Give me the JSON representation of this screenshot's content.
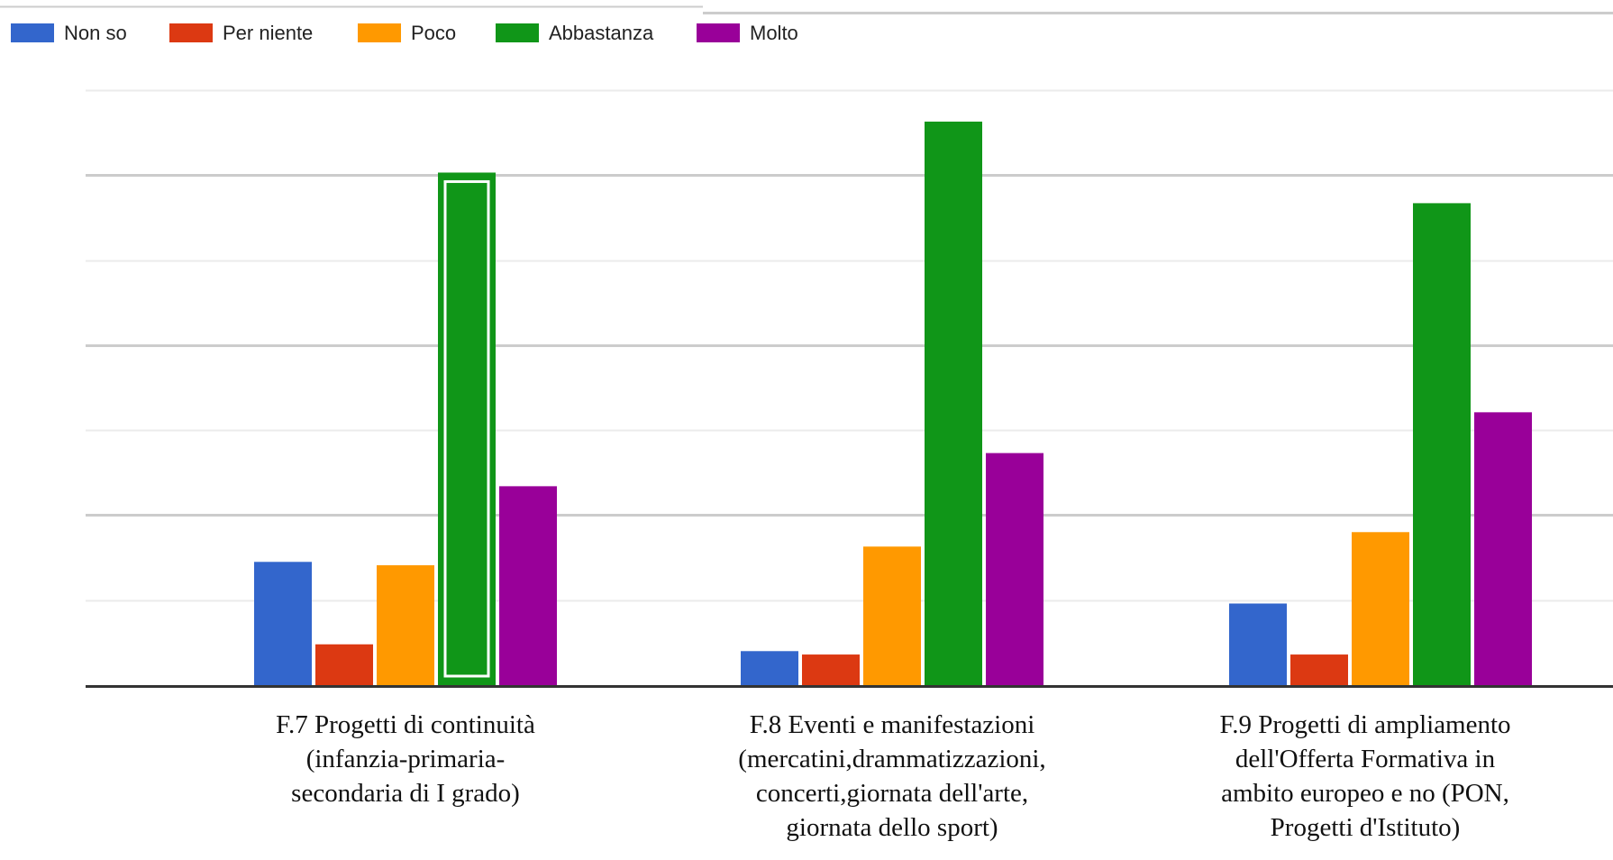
{
  "chart_data": {
    "type": "bar",
    "categories": [
      [
        "F.7 Progetti di continuità",
        "(infanzia-primaria-",
        "secondaria di I grado)"
      ],
      [
        "F.8 Eventi e manifestazioni",
        "(mercatini,drammatizzazioni,",
        "concerti,giornata dell'arte,",
        "giornata dello sport)"
      ],
      [
        "F.9 Progetti di ampliamento",
        "dell'Offerta Formativa in",
        "ambito europeo e no (PON,",
        "Progetti d'Istituto)"
      ]
    ],
    "series": [
      {
        "name": "Non so",
        "color": "#3366cc",
        "values": [
          14.5,
          4.0,
          9.6
        ]
      },
      {
        "name": "Per niente",
        "color": "#dc3912",
        "values": [
          4.8,
          3.6,
          3.6
        ]
      },
      {
        "name": "Poco",
        "color": "#ff9900",
        "values": [
          14.1,
          16.3,
          18.0
        ]
      },
      {
        "name": "Abbastanza",
        "color": "#109618",
        "values": [
          60.3,
          66.3,
          56.7
        ]
      },
      {
        "name": "Molto",
        "color": "#990099",
        "values": [
          23.4,
          27.3,
          32.1
        ]
      }
    ],
    "ylim": [
      0,
      70
    ],
    "gridlines": 7,
    "legend_position": "top-left",
    "highlighted": {
      "series": "Abbastanza",
      "category_index": 0
    }
  }
}
